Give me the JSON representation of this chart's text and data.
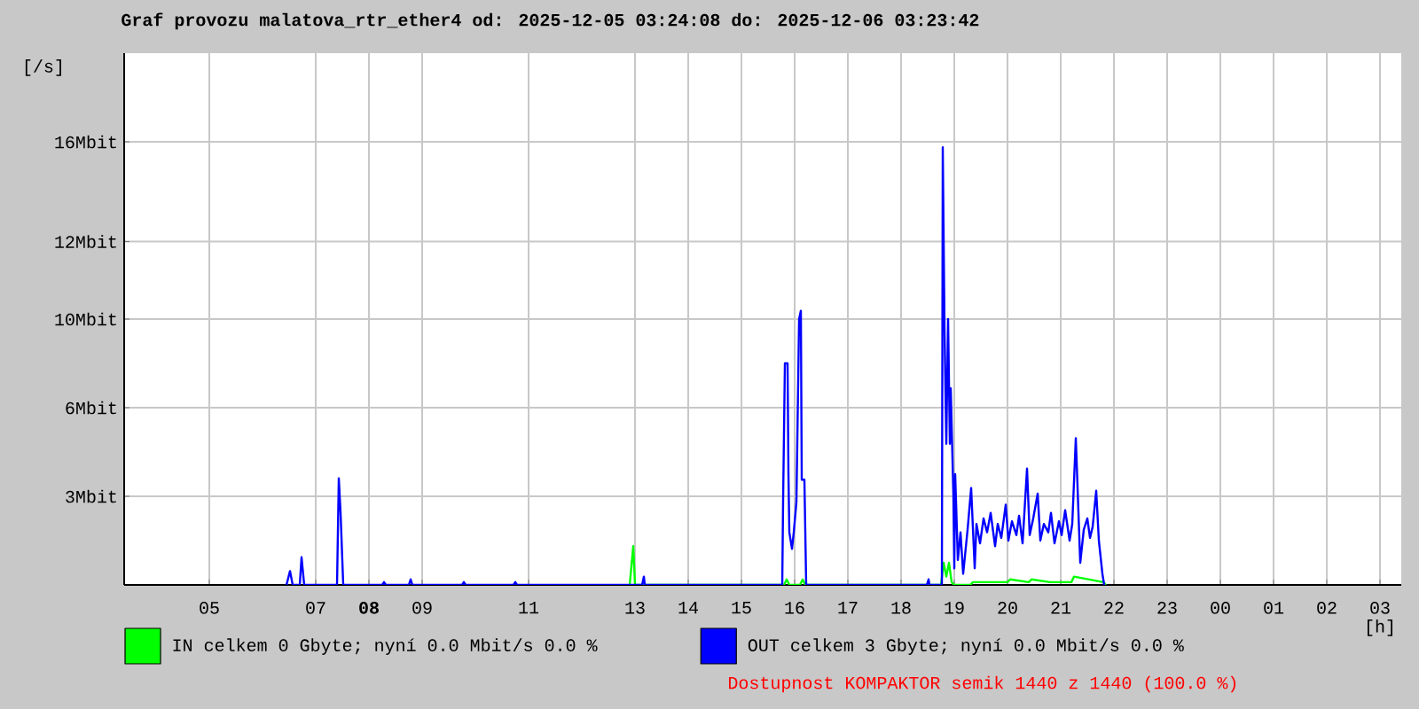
{
  "chart_data": {
    "type": "line",
    "title": "Graf provozu malatova_rtr_ether4 od: 2025-12-05 03:24:08 do: 2025-12-06 03:23:42",
    "xlabel": "[h]",
    "ylabel": "[/s]",
    "xlim": [
      "2025-12-05T03:24",
      "2025-12-06T03:24"
    ],
    "ylim": [
      0,
      19.2
    ],
    "xticks": [
      {
        "value": "2025-12-05T05:00",
        "label": "05"
      },
      {
        "value": "2025-12-05T07:00",
        "label": "07"
      },
      {
        "value": "2025-12-05T08:00",
        "label": "**08**"
      },
      {
        "value": "2025-12-05T09:00",
        "label": "09"
      },
      {
        "value": "2025-12-05T11:00",
        "label": "11"
      },
      {
        "value": "2025-12-05T13:00",
        "label": "13"
      },
      {
        "value": "2025-12-05T14:00",
        "label": "14"
      },
      {
        "value": "2025-12-05T15:00",
        "label": "15"
      },
      {
        "value": "2025-12-05T16:00",
        "label": "16"
      },
      {
        "value": "2025-12-05T17:00",
        "label": "17"
      },
      {
        "value": "2025-12-05T18:00",
        "label": "18"
      },
      {
        "value": "2025-12-05T19:00",
        "label": "19"
      },
      {
        "value": "2025-12-05T20:00",
        "label": "20"
      },
      {
        "value": "2025-12-05T21:00",
        "label": "21"
      },
      {
        "value": "2025-12-05T22:00",
        "label": "22"
      },
      {
        "value": "2025-12-05T23:00",
        "label": "23"
      },
      {
        "value": "2025-12-06T00:00",
        "label": "00"
      },
      {
        "value": "2025-12-06T01:00",
        "label": "01"
      },
      {
        "value": "2025-12-06T02:00",
        "label": "02"
      },
      {
        "value": "2025-12-06T03:00",
        "label": "03"
      }
    ],
    "yticks": [
      {
        "value": 3.2,
        "label": "3Mbit"
      },
      {
        "value": 6.4,
        "label": "6Mbit"
      },
      {
        "value": 9.6,
        "label": "10Mbit"
      },
      {
        "value": 12.4,
        "label": "12Mbit"
      },
      {
        "value": 16,
        "label": "16Mbit"
      }
    ],
    "grid": true,
    "legend": "bottom",
    "series": [
      {
        "name": "IN celkem 0 Gbyte; nyní   0.0 Mbit/s 0.0 %",
        "color": "#00ff00",
        "x": [
          "2025-12-05T12:54",
          "2025-12-05T12:58",
          "2025-12-05T13:00",
          "2025-12-05T15:48",
          "2025-12-05T15:51",
          "2025-12-05T15:54",
          "2025-12-05T16:06",
          "2025-12-05T16:09",
          "2025-12-05T16:12",
          "2025-12-05T18:45",
          "2025-12-05T18:48",
          "2025-12-05T18:51",
          "2025-12-05T18:54",
          "2025-12-05T18:57",
          "2025-12-05T19:00",
          "2025-12-05T19:18",
          "2025-12-05T19:21",
          "2025-12-05T19:36",
          "2025-12-05T20:00",
          "2025-12-05T20:03",
          "2025-12-05T20:24",
          "2025-12-05T20:27",
          "2025-12-05T20:48",
          "2025-12-05T21:12",
          "2025-12-05T21:15",
          "2025-12-05T21:48",
          "2025-12-05T21:51"
        ],
        "values": [
          0,
          1.4,
          0,
          0,
          0.2,
          0,
          0,
          0.2,
          0,
          0,
          0.8,
          0.3,
          0.8,
          0.1,
          0,
          0,
          0.1,
          0.1,
          0.1,
          0.2,
          0.1,
          0.2,
          0.1,
          0.1,
          0.3,
          0.1,
          0
        ]
      },
      {
        "name": "OUT celkem 3 Gbyte; nyní   0.0 Mbit/s 0.0 %",
        "color": "#0000ff",
        "x": [
          "2025-12-05T06:27",
          "2025-12-05T06:31",
          "2025-12-05T06:34",
          "2025-12-05T06:42",
          "2025-12-05T06:44",
          "2025-12-05T06:47",
          "2025-12-05T07:24",
          "2025-12-05T07:26",
          "2025-12-05T07:28",
          "2025-12-05T07:31",
          "2025-12-05T08:15",
          "2025-12-05T08:17",
          "2025-12-05T08:19",
          "2025-12-05T08:45",
          "2025-12-05T08:47",
          "2025-12-05T08:49",
          "2025-12-05T09:45",
          "2025-12-05T09:47",
          "2025-12-05T09:49",
          "2025-12-05T10:43",
          "2025-12-05T10:45",
          "2025-12-05T10:47",
          "2025-12-05T13:08",
          "2025-12-05T13:10",
          "2025-12-05T13:11",
          "2025-12-05T15:46",
          "2025-12-05T15:47",
          "2025-12-05T15:49",
          "2025-12-05T15:52",
          "2025-12-05T15:53",
          "2025-12-05T15:54",
          "2025-12-05T15:57",
          "2025-12-05T15:59",
          "2025-12-05T16:02",
          "2025-12-05T16:05",
          "2025-12-05T16:07",
          "2025-12-05T16:08",
          "2025-12-05T16:11",
          "2025-12-05T16:13",
          "2025-12-05T18:29",
          "2025-12-05T18:31",
          "2025-12-05T18:32",
          "2025-12-05T18:46",
          "2025-12-05T18:47",
          "2025-12-05T18:49",
          "2025-12-05T18:51",
          "2025-12-05T18:53",
          "2025-12-05T18:55",
          "2025-12-05T18:56",
          "2025-12-05T18:59",
          "2025-12-05T19:00",
          "2025-12-05T19:01",
          "2025-12-05T19:04",
          "2025-12-05T19:07",
          "2025-12-05T19:10",
          "2025-12-05T19:15",
          "2025-12-05T19:19",
          "2025-12-05T19:23",
          "2025-12-05T19:25",
          "2025-12-05T19:29",
          "2025-12-05T19:33",
          "2025-12-05T19:37",
          "2025-12-05T19:41",
          "2025-12-05T19:46",
          "2025-12-05T19:49",
          "2025-12-05T19:53",
          "2025-12-05T19:58",
          "2025-12-05T20:01",
          "2025-12-05T20:05",
          "2025-12-05T20:10",
          "2025-12-05T20:13",
          "2025-12-05T20:17",
          "2025-12-05T20:22",
          "2025-12-05T20:25",
          "2025-12-05T20:29",
          "2025-12-05T20:34",
          "2025-12-05T20:37",
          "2025-12-05T20:41",
          "2025-12-05T20:46",
          "2025-12-05T20:49",
          "2025-12-05T20:53",
          "2025-12-05T20:58",
          "2025-12-05T21:01",
          "2025-12-05T21:05",
          "2025-12-05T21:10",
          "2025-12-05T21:13",
          "2025-12-05T21:17",
          "2025-12-05T21:22",
          "2025-12-05T21:26",
          "2025-12-05T21:30",
          "2025-12-05T21:33",
          "2025-12-05T21:36",
          "2025-12-05T21:40",
          "2025-12-05T21:43",
          "2025-12-05T21:47",
          "2025-12-05T21:49"
        ],
        "values": [
          0,
          0.5,
          0,
          0,
          1.0,
          0,
          0,
          3.85,
          2.6,
          0,
          0,
          0.1,
          0,
          0,
          0.2,
          0,
          0,
          0.1,
          0,
          0,
          0.1,
          0,
          0,
          0.3,
          0,
          0,
          3.1,
          8.0,
          8.0,
          4.0,
          1.9,
          1.3,
          1.9,
          3.0,
          9.6,
          9.9,
          3.8,
          3.8,
          0,
          0,
          0.2,
          0,
          0,
          15.8,
          9.2,
          5.1,
          9.6,
          5.1,
          7.1,
          3.2,
          0.6,
          4.0,
          0.9,
          1.9,
          0.4,
          2.0,
          3.5,
          0.6,
          2.2,
          1.5,
          2.4,
          1.9,
          2.6,
          1.4,
          2.2,
          1.7,
          2.9,
          1.6,
          2.3,
          1.8,
          2.5,
          1.5,
          4.2,
          1.8,
          2.4,
          3.3,
          1.6,
          2.2,
          1.9,
          2.6,
          1.5,
          2.3,
          1.8,
          2.7,
          1.6,
          2.2,
          5.3,
          0.8,
          2.0,
          2.4,
          1.7,
          2.1,
          3.4,
          1.6,
          0.4,
          0
        ]
      }
    ],
    "annotations": [
      "Dostupnost KOMPAKTOR semik 1440 z 1440 (100.0 %)"
    ]
  }
}
